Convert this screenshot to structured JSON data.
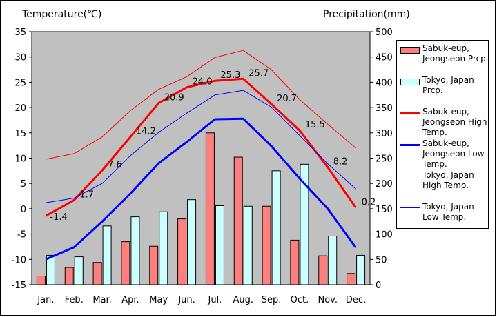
{
  "chart_data": {
    "type": "bar+line",
    "categories": [
      "Jan.",
      "Feb.",
      "Mar.",
      "Apr.",
      "May",
      "Jun.",
      "Jul.",
      "Aug.",
      "Sep.",
      "Oct.",
      "Nov.",
      "Dec."
    ],
    "y_left": {
      "label": "Temperature(℃)",
      "range": [
        -15,
        35
      ],
      "ticks": [
        35,
        30,
        25,
        20,
        15,
        10,
        5,
        0,
        -5,
        -10,
        -15
      ]
    },
    "y_right": {
      "label": "Precipitation(mm)",
      "range": [
        0,
        500
      ],
      "ticks": [
        500,
        450,
        400,
        350,
        300,
        250,
        200,
        150,
        100,
        50,
        0
      ]
    },
    "bars": [
      {
        "name": "Sabuk-eup, Jeongseon Prcp.",
        "color": "#ff7f7f",
        "values": [
          17,
          34,
          44,
          85,
          76,
          130,
          300,
          252,
          155,
          88,
          57,
          22
        ]
      },
      {
        "name": "Tokyo, Japan Prcp.",
        "color": "#ccffff",
        "values": [
          58,
          55,
          116,
          134,
          144,
          168,
          156,
          155,
          225,
          238,
          96,
          58
        ]
      }
    ],
    "lines": [
      {
        "name": "Sabuk-eup, Jeongseon High Temp.",
        "color": "#ff0000",
        "width": 3,
        "values": [
          -1.4,
          1.7,
          7.6,
          14.2,
          20.9,
          24.0,
          25.3,
          25.7,
          20.7,
          15.5,
          8.2,
          0.2
        ],
        "point_labels": [
          "-1.4",
          "1.7",
          "7.6",
          "14.2",
          "20.9",
          "24.0",
          "25.3",
          "25.7",
          "20.7",
          "15.5",
          "8.2",
          "0.2"
        ]
      },
      {
        "name": "Sabuk-eup, Jeongseon Low Temp.",
        "color": "#0000ff",
        "width": 3,
        "values": [
          -10.0,
          -7.6,
          -2.5,
          3.0,
          9.0,
          13.2,
          17.7,
          17.8,
          12.4,
          6.0,
          0.0,
          -7.7
        ]
      },
      {
        "name": "Tokyo, Japan High Temp.",
        "color": "#ff0000",
        "width": 1,
        "values": [
          9.8,
          10.9,
          14.2,
          19.4,
          23.6,
          26.1,
          29.9,
          31.3,
          27.5,
          21.6,
          16.7,
          12.0
        ]
      },
      {
        "name": "Tokyo, Japan Low Temp.",
        "color": "#0000ff",
        "width": 1,
        "values": [
          1.2,
          2.1,
          5.0,
          10.5,
          15.1,
          18.9,
          22.5,
          23.4,
          20.1,
          14.5,
          8.9,
          3.9
        ]
      }
    ],
    "grid": false,
    "legend_position": "right",
    "plot_background": "#c0c0c0"
  },
  "legend": {
    "items": [
      {
        "label": "Sabuk-eup, Jeongseon Prcp.",
        "kind": "bar",
        "color": "#ff7f7f"
      },
      {
        "label": "Tokyo, Japan Prcp.",
        "kind": "bar",
        "color": "#ccffff"
      },
      {
        "label": "Sabuk-eup, Jeongseon High Temp.",
        "kind": "line",
        "color": "#ff0000",
        "width": 3
      },
      {
        "label": "Sabuk-eup, Jeongseon Low Temp.",
        "kind": "line",
        "color": "#0000ff",
        "width": 3
      },
      {
        "label": "Tokyo, Japan High Temp.",
        "kind": "line",
        "color": "#ff0000",
        "width": 1
      },
      {
        "label": "Tokyo, Japan Low Temp.",
        "kind": "line",
        "color": "#0000ff",
        "width": 1
      }
    ]
  }
}
